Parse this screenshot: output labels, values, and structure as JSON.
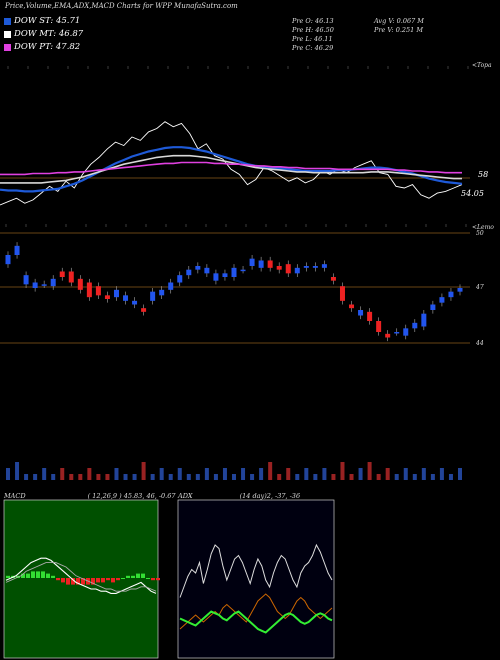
{
  "title": "Price,Volume,EMA,ADX,MACD Charts for WPP MunafaSutra.com",
  "legend": [
    {
      "label": "DOW ST: 45.71",
      "color": "#1e5ad8"
    },
    {
      "label": "DOW MT: 46.87",
      "color": "#ffffff"
    },
    {
      "label": "DOW PT: 47.82",
      "color": "#e040e0"
    }
  ],
  "stats_left": [
    "Pre O: 46.13",
    "Pre H: 46.50",
    "Pre L: 46.11",
    "Pre C: 46.29"
  ],
  "stats_right": [
    "Avg V: 0.067 M",
    "Pre V: 0.251 M"
  ],
  "axis_tag_top": "<Topa",
  "axis_tag_mid": "<Lemo",
  "top_right_labels": {
    "upper": "58",
    "lower": "54.05"
  },
  "candle_right_labels": [
    "50",
    "47",
    "44"
  ],
  "macd_header": {
    "name": "MACD",
    "params": "( 12,26,9 ) 45.83, 46, -0.67"
  },
  "adx_header": {
    "name": "ADX",
    "params": "(14 day)2, -37, -36"
  },
  "chart_data": [
    {
      "type": "line",
      "title": "Price with EMA",
      "series": [
        {
          "name": "Price",
          "color": "#ffffff",
          "values": [
            53.0,
            53.4,
            53.8,
            53.2,
            53.6,
            54.4,
            55.2,
            54.6,
            55.8,
            55.0,
            56.6,
            57.8,
            58.6,
            59.6,
            60.4,
            60.0,
            61.0,
            60.6,
            61.6,
            62.0,
            62.8,
            62.2,
            62.6,
            61.4,
            59.6,
            60.2,
            58.8,
            58.4,
            57.2,
            56.6,
            55.4,
            56.0,
            57.4,
            57.0,
            56.4,
            55.8,
            56.2,
            55.6,
            56.0,
            57.0,
            56.6,
            57.2,
            56.8,
            57.4,
            57.8,
            58.2,
            56.8,
            56.6,
            55.2,
            55.0,
            55.4,
            54.2,
            53.8,
            54.4,
            54.6,
            55.0,
            55.4
          ]
        },
        {
          "name": "EMA fast",
          "color": "#1e5ad8",
          "values": [
            54.8,
            54.7,
            54.7,
            54.6,
            54.6,
            54.7,
            54.8,
            54.9,
            55.2,
            55.5,
            55.9,
            56.4,
            56.9,
            57.4,
            57.9,
            58.3,
            58.7,
            59.0,
            59.3,
            59.5,
            59.7,
            59.8,
            59.8,
            59.7,
            59.5,
            59.3,
            59.0,
            58.7,
            58.4,
            58.1,
            57.8,
            57.6,
            57.5,
            57.4,
            57.3,
            57.2,
            57.1,
            57.0,
            57.0,
            57.0,
            57.0,
            57.1,
            57.1,
            57.2,
            57.3,
            57.4,
            57.4,
            57.3,
            57.1,
            56.9,
            56.7,
            56.4,
            56.1,
            55.9,
            55.7,
            55.6,
            55.5
          ]
        },
        {
          "name": "EMA medium",
          "color": "#d8d8d8",
          "values": [
            55.6,
            55.6,
            55.6,
            55.6,
            55.6,
            55.6,
            55.7,
            55.8,
            55.9,
            56.1,
            56.3,
            56.6,
            56.9,
            57.2,
            57.5,
            57.8,
            58.0,
            58.2,
            58.4,
            58.6,
            58.7,
            58.8,
            58.8,
            58.8,
            58.7,
            58.6,
            58.4,
            58.2,
            58.0,
            57.8,
            57.6,
            57.4,
            57.3,
            57.2,
            57.1,
            57.0,
            56.9,
            56.9,
            56.8,
            56.8,
            56.8,
            56.8,
            56.8,
            56.8,
            56.8,
            56.9,
            56.9,
            56.9,
            56.8,
            56.7,
            56.6,
            56.5,
            56.4,
            56.3,
            56.2,
            56.1,
            56.1
          ]
        },
        {
          "name": "EMA slow",
          "color": "#e040e0",
          "values": [
            56.6,
            56.6,
            56.6,
            56.6,
            56.7,
            56.7,
            56.7,
            56.8,
            56.8,
            56.9,
            56.9,
            57.0,
            57.1,
            57.2,
            57.3,
            57.4,
            57.5,
            57.6,
            57.7,
            57.8,
            57.9,
            57.9,
            58.0,
            58.0,
            58.0,
            58.0,
            57.9,
            57.9,
            57.8,
            57.8,
            57.7,
            57.6,
            57.6,
            57.5,
            57.5,
            57.4,
            57.4,
            57.3,
            57.3,
            57.3,
            57.3,
            57.2,
            57.2,
            57.2,
            57.2,
            57.2,
            57.2,
            57.2,
            57.1,
            57.1,
            57.0,
            57.0,
            56.9,
            56.9,
            56.8,
            56.8,
            56.8
          ]
        }
      ]
    },
    {
      "type": "bar",
      "title": "Candles",
      "ylim": [
        43,
        51
      ],
      "open": [
        48.3,
        48.8,
        47.2,
        47.0,
        47.2,
        47.1,
        47.9,
        47.9,
        47.5,
        47.3,
        47.1,
        46.6,
        46.5,
        46.3,
        46.1,
        45.9,
        46.3,
        46.6,
        46.9,
        47.3,
        47.7,
        48.0,
        47.8,
        47.4,
        47.6,
        47.6,
        48.0,
        48.2,
        48.1,
        48.5,
        48.2,
        48.3,
        47.8,
        48.1,
        48.1,
        48.1,
        47.6,
        47.1,
        46.1,
        45.5,
        45.7,
        45.2,
        44.5,
        44.6,
        44.4,
        44.8,
        44.9,
        45.8,
        46.2,
        46.5,
        46.8
      ],
      "close": [
        48.8,
        49.3,
        47.7,
        47.3,
        47.2,
        47.5,
        47.6,
        47.3,
        46.9,
        46.5,
        46.6,
        46.4,
        46.9,
        46.6,
        46.3,
        45.7,
        46.8,
        46.9,
        47.3,
        47.7,
        48.0,
        48.2,
        48.1,
        47.8,
        47.8,
        48.1,
        48.0,
        48.6,
        48.5,
        48.1,
        48.0,
        47.8,
        48.1,
        48.2,
        48.2,
        48.3,
        47.4,
        46.3,
        45.9,
        45.8,
        45.2,
        44.6,
        44.3,
        44.6,
        44.8,
        45.1,
        45.6,
        46.1,
        46.5,
        46.8,
        47.0
      ],
      "volume": [
        0.2,
        0.3,
        0.1,
        0.1,
        0.2,
        0.1,
        0.2,
        0.1,
        0.1,
        0.2,
        0.1,
        0.1,
        0.2,
        0.1,
        0.1,
        0.3,
        0.1,
        0.2,
        0.1,
        0.2,
        0.1,
        0.1,
        0.2,
        0.1,
        0.2,
        0.1,
        0.2,
        0.1,
        0.2,
        0.3,
        0.1,
        0.2,
        0.1,
        0.2,
        0.1,
        0.2,
        0.1,
        0.3,
        0.1,
        0.2,
        0.3,
        0.1,
        0.2,
        0.1,
        0.2,
        0.1,
        0.2,
        0.1,
        0.2,
        0.1,
        0.2
      ]
    },
    {
      "type": "line",
      "title": "MACD",
      "series": [
        {
          "name": "MACD",
          "color": "#ffffff",
          "values": [
            -0.1,
            0.0,
            0.1,
            0.3,
            0.5,
            0.7,
            0.8,
            0.9,
            0.9,
            0.8,
            0.6,
            0.4,
            0.2,
            0.0,
            -0.2,
            -0.3,
            -0.4,
            -0.5,
            -0.5,
            -0.6,
            -0.6,
            -0.7,
            -0.7,
            -0.6,
            -0.5,
            -0.4,
            -0.3,
            -0.2,
            -0.4,
            -0.6,
            -0.7
          ]
        },
        {
          "name": "Signal",
          "color": "#aaaaaa",
          "values": [
            -0.2,
            -0.1,
            0.0,
            0.1,
            0.3,
            0.4,
            0.5,
            0.6,
            0.7,
            0.7,
            0.7,
            0.6,
            0.5,
            0.3,
            0.1,
            0.0,
            -0.1,
            -0.2,
            -0.3,
            -0.4,
            -0.5,
            -0.5,
            -0.6,
            -0.6,
            -0.6,
            -0.5,
            -0.5,
            -0.4,
            -0.4,
            -0.5,
            -0.6
          ]
        },
        {
          "name": "Histogram",
          "color": "#33dd33",
          "values": [
            0.1,
            0.1,
            0.1,
            0.2,
            0.2,
            0.3,
            0.3,
            0.3,
            0.2,
            0.1,
            -0.1,
            -0.2,
            -0.3,
            -0.3,
            -0.3,
            -0.3,
            -0.3,
            -0.3,
            -0.2,
            -0.2,
            -0.1,
            -0.2,
            -0.1,
            0.0,
            0.1,
            0.1,
            0.2,
            0.2,
            0.0,
            -0.1,
            -0.1
          ]
        }
      ]
    },
    {
      "type": "line",
      "title": "ADX",
      "series": [
        {
          "name": "+DI",
          "color": "#dddddd",
          "values": [
            30,
            36,
            42,
            46,
            44,
            50,
            38,
            46,
            55,
            60,
            58,
            48,
            40,
            46,
            52,
            54,
            50,
            44,
            38,
            46,
            52,
            48,
            40,
            36,
            44,
            50,
            54,
            52,
            46,
            40,
            36,
            44,
            48,
            50,
            54,
            60,
            56,
            50,
            44,
            40
          ]
        },
        {
          "name": "-DI",
          "color": "#cc6600",
          "values": [
            12,
            14,
            16,
            18,
            20,
            18,
            16,
            18,
            20,
            22,
            20,
            24,
            26,
            24,
            22,
            20,
            18,
            16,
            20,
            24,
            28,
            30,
            32,
            30,
            26,
            22,
            20,
            18,
            20,
            24,
            28,
            30,
            28,
            24,
            22,
            20,
            18,
            20,
            22,
            24
          ]
        },
        {
          "name": "ADX",
          "color": "#33ee33",
          "values": [
            18,
            17,
            16,
            15,
            14,
            16,
            18,
            20,
            22,
            21,
            20,
            18,
            17,
            19,
            21,
            22,
            20,
            18,
            16,
            14,
            12,
            11,
            10,
            12,
            14,
            16,
            18,
            20,
            21,
            20,
            18,
            16,
            15,
            16,
            18,
            20,
            21,
            20,
            18,
            17
          ]
        }
      ]
    }
  ]
}
